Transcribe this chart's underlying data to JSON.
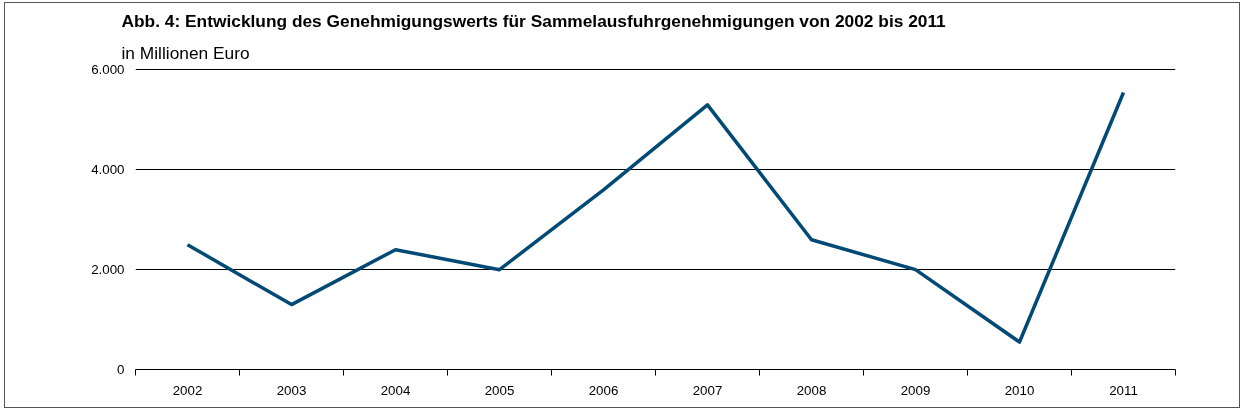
{
  "chart_data": {
    "type": "line",
    "title": "Abb. 4: Entwicklung des Genehmigungswerts für Sammelausfuhrgenehmigungen von 2002 bis 2011",
    "subtitle": "in Millionen Euro",
    "categories": [
      "2002",
      "2003",
      "2004",
      "2005",
      "2006",
      "2007",
      "2008",
      "2009",
      "2010",
      "2011"
    ],
    "series": [
      {
        "color": "#004a75",
        "values": [
          2500,
          1300,
          2400,
          2000,
          3600,
          5300,
          2600,
          2000,
          550,
          5550
        ]
      }
    ],
    "ylim": [
      0,
      6050
    ],
    "yticks": [
      0,
      {
        "value": 2000,
        "label": "2.000"
      },
      {
        "value": 4000,
        "label": "4.000"
      },
      {
        "value": 6000,
        "label": "6.000"
      }
    ],
    "grid": "y",
    "marker": "none",
    "line_style": "solid"
  }
}
